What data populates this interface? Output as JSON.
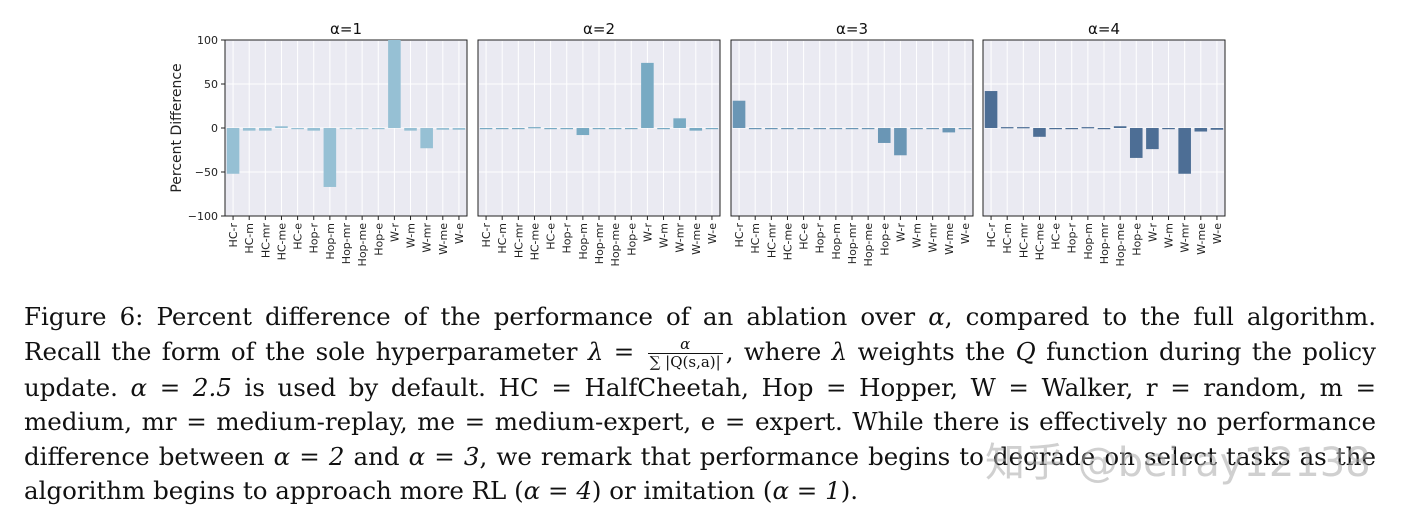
{
  "chart_data": {
    "type": "bar",
    "ylabel": "Percent Difference",
    "ylim": [
      -100,
      100
    ],
    "yticks": [
      100,
      50,
      0,
      -50,
      -100
    ],
    "ytick_labels": [
      "100",
      "50",
      "0",
      "−50",
      "−100"
    ],
    "categories": [
      "HC-r",
      "HC-m",
      "HC-mr",
      "HC-me",
      "HC-e",
      "Hop-r",
      "Hop-m",
      "Hop-mr",
      "Hop-me",
      "Hop-e",
      "W-r",
      "W-m",
      "W-mr",
      "W-me",
      "W-e"
    ],
    "series": [
      {
        "name": "α=1",
        "color": "#96c0d4",
        "values": [
          -52,
          -3,
          -3,
          2,
          0,
          -3,
          -67,
          -1,
          -1,
          -1,
          100,
          -3,
          -23,
          -2,
          -2
        ]
      },
      {
        "name": "α=2",
        "color": "#78aac3",
        "values": [
          0,
          0,
          0,
          1,
          0,
          0,
          -8,
          0,
          0,
          0,
          74,
          0,
          11,
          -3,
          0
        ]
      },
      {
        "name": "α=3",
        "color": "#6a96b5",
        "values": [
          31,
          0,
          0,
          0,
          0,
          0,
          0,
          0,
          0,
          -17,
          -31,
          -1,
          0,
          -5,
          0
        ]
      },
      {
        "name": "α=4",
        "color": "#4d6e95",
        "values": [
          42,
          1,
          1,
          -10,
          0,
          0,
          1,
          0,
          2,
          -34,
          -24,
          0,
          -52,
          -4,
          -2
        ]
      }
    ]
  },
  "caption": {
    "figure_label": "Figure 6:",
    "text_1": "Percent difference of the performance of an ablation over ",
    "alpha": "α",
    "text_2": ", compared to the full algorithm. Recall the form of the sole hyperparameter ",
    "lambda_eq": "λ =",
    "frac_num": "α",
    "frac_den": "∑ |Q(s,a)|",
    "text_3": ", where ",
    "lambda": "λ",
    "text_4": " weights the ",
    "Q": "Q",
    "text_5": " function during the policy update.",
    "default_eq": "α = 2.5",
    "text_6": " is used by default. HC = HalfCheetah, Hop = Hopper, W = Walker, r = random, m = medium, mr = medium-replay, me = medium-expert, e = expert. While there is effectively no performance difference between ",
    "eq_a2": "α = 2",
    "text_7": " and ",
    "eq_a3": "α = 3",
    "text_8": ", we remark that performance begins to degrade on select tasks as the algorithm begins to approach more RL (",
    "eq_a4": "α = 4",
    "text_9": ") or imitation (",
    "eq_a1": "α = 1",
    "text_10": ")."
  },
  "watermark": "知乎 @beiray12138"
}
